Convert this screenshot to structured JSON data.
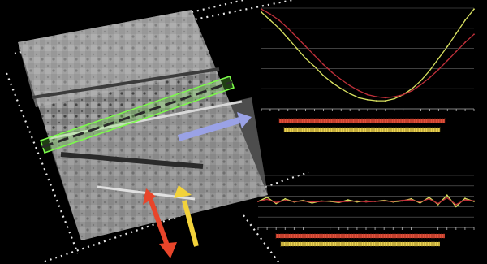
{
  "colors": {
    "background": "#000000",
    "dotted_line": "#e8e8e8",
    "runway_highlight": "#7CFC4A",
    "transect_arrow": "#9aa2e6",
    "arrow_red": "#e8452a",
    "arrow_yellow": "#f2d23a",
    "plot_series_yellow": "#d8e060",
    "plot_series_red": "#c0303a",
    "bar_red": "#e0503a",
    "bar_yellow": "#e8d050",
    "grid": "#666666"
  },
  "chart_data": [
    {
      "type": "line",
      "title": "",
      "xlabel": "",
      "ylabel": "",
      "series": [
        {
          "values": [
            96,
            88,
            80,
            70,
            60,
            50,
            42,
            33,
            26,
            20,
            15,
            11,
            9,
            8,
            8,
            10,
            14,
            20,
            28,
            38,
            50,
            62,
            75,
            88,
            99
          ]
        },
        {
          "values": [
            99,
            94,
            88,
            80,
            71,
            62,
            53,
            44,
            36,
            29,
            23,
            18,
            14,
            12,
            11,
            12,
            14,
            18,
            24,
            31,
            39,
            48,
            57,
            66,
            74
          ]
        }
      ],
      "ylim": [
        0,
        100
      ],
      "grid": true
    },
    {
      "type": "line",
      "title": "",
      "xlabel": "",
      "ylabel": "",
      "series": [
        {
          "values": [
            50,
            58,
            46,
            55,
            49,
            52,
            47,
            51,
            50,
            48,
            53,
            49,
            51,
            50,
            52,
            49,
            51,
            55,
            47,
            58,
            44,
            62,
            40,
            56,
            50
          ]
        },
        {
          "values": [
            50,
            54,
            48,
            52,
            50,
            51,
            49,
            50,
            51,
            49,
            50,
            51,
            49,
            50,
            51,
            50,
            52,
            53,
            49,
            55,
            46,
            57,
            44,
            53,
            51
          ]
        }
      ],
      "ylim": [
        0,
        100
      ],
      "grid": true
    }
  ]
}
